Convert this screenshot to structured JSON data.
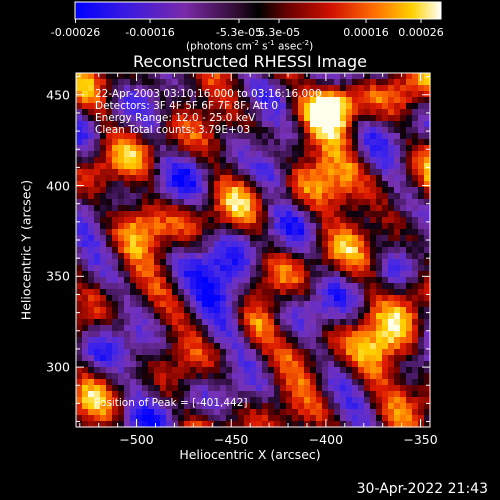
{
  "colorbar": {
    "tick_labels": [
      "-0.00026",
      "-0.00016",
      "-5.3e-05",
      "5.3e-05",
      "0.00016",
      "0.00026"
    ],
    "units_prefix": "(photons cm",
    "units_exp1": "-2",
    "units_mid": " s",
    "units_exp2": "-1",
    "units_mid2": " asec",
    "units_exp3": "-2",
    "units_suffix": ")",
    "range": [
      -0.00026,
      0.00026
    ],
    "colormap": "blue-purple-black-red-orange-yellow-white"
  },
  "chart_data": {
    "type": "heatmap",
    "title": "Reconstructed RHESSI Image",
    "xlabel": "Heliocentric X (arcsec)",
    "ylabel": "Heliocentric Y (arcsec)",
    "xlim": [
      -532,
      -345
    ],
    "ylim": [
      267,
      462
    ],
    "x_ticks": [
      -500,
      -450,
      -400,
      -350
    ],
    "x_tick_labels": [
      "−500",
      "−450",
      "−400",
      "−350"
    ],
    "y_ticks": [
      300,
      350,
      400,
      450
    ],
    "y_tick_labels": [
      "300",
      "350",
      "400",
      "450"
    ],
    "info_lines": [
      "22-Apr-2003 03:10:16.000 to 03:16:16.000",
      "Detectors: 3F 4F 5F 6F 7F 8F, Att 0",
      "Energy Range: 12.0 - 25.0 keV",
      "Clean      Total counts: 3.79E+03"
    ],
    "peak_text": "Position of Peak = [-401,442]",
    "peak_position": [
      -401,
      442
    ]
  },
  "timestamp": "30-Apr-2022 21:43"
}
